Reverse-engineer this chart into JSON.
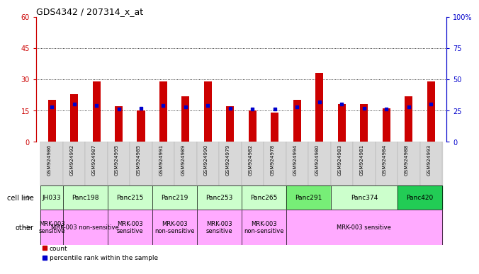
{
  "title": "GDS4342 / 207314_x_at",
  "samples": [
    "GSM924986",
    "GSM924992",
    "GSM924987",
    "GSM924995",
    "GSM924985",
    "GSM924991",
    "GSM924989",
    "GSM924990",
    "GSM924979",
    "GSM924982",
    "GSM924978",
    "GSM924994",
    "GSM924980",
    "GSM924983",
    "GSM924981",
    "GSM924984",
    "GSM924988",
    "GSM924993"
  ],
  "counts": [
    20,
    23,
    29,
    17,
    15,
    29,
    22,
    29,
    17,
    15,
    14,
    20,
    33,
    18,
    18,
    16,
    22,
    29
  ],
  "percentile_ranks": [
    28,
    30,
    29,
    26,
    27,
    29,
    28,
    29,
    27,
    26,
    26,
    28,
    32,
    30,
    27,
    26,
    28,
    30
  ],
  "cell_lines": [
    {
      "name": "JH033",
      "color": "#ccffcc",
      "span": [
        0,
        1
      ]
    },
    {
      "name": "Panc198",
      "color": "#ccffcc",
      "span": [
        1,
        3
      ]
    },
    {
      "name": "Panc215",
      "color": "#ccffcc",
      "span": [
        3,
        5
      ]
    },
    {
      "name": "Panc219",
      "color": "#ccffcc",
      "span": [
        5,
        7
      ]
    },
    {
      "name": "Panc253",
      "color": "#ccffcc",
      "span": [
        7,
        9
      ]
    },
    {
      "name": "Panc265",
      "color": "#ccffcc",
      "span": [
        9,
        11
      ]
    },
    {
      "name": "Panc291",
      "color": "#77ee77",
      "span": [
        11,
        13
      ]
    },
    {
      "name": "Panc374",
      "color": "#ccffcc",
      "span": [
        13,
        16
      ]
    },
    {
      "name": "Panc420",
      "color": "#22cc55",
      "span": [
        16,
        18
      ]
    }
  ],
  "others": [
    {
      "name": "MRK-003\nsensitive",
      "color": "#ffaaff",
      "span": [
        0,
        1
      ]
    },
    {
      "name": "MRK-003 non-sensitive",
      "color": "#ffaaff",
      "span": [
        1,
        3
      ]
    },
    {
      "name": "MRK-003\nsensitive",
      "color": "#ffaaff",
      "span": [
        3,
        5
      ]
    },
    {
      "name": "MRK-003\nnon-sensitive",
      "color": "#ffaaff",
      "span": [
        5,
        7
      ]
    },
    {
      "name": "MRK-003\nsensitive",
      "color": "#ffaaff",
      "span": [
        7,
        9
      ]
    },
    {
      "name": "MRK-003\nnon-sensitive",
      "color": "#ffaaff",
      "span": [
        9,
        11
      ]
    },
    {
      "name": "MRK-003 sensitive",
      "color": "#ffaaff",
      "span": [
        11,
        18
      ]
    }
  ],
  "bar_color": "#cc0000",
  "dot_color": "#0000cc",
  "left_ylim": [
    0,
    60
  ],
  "right_ylim": [
    0,
    100
  ],
  "left_yticks": [
    0,
    15,
    30,
    45,
    60
  ],
  "right_yticks": [
    0,
    25,
    50,
    75,
    100
  ],
  "dotted_lines": [
    15,
    30,
    45
  ],
  "axis_color_left": "#cc0000",
  "axis_color_right": "#0000cc"
}
